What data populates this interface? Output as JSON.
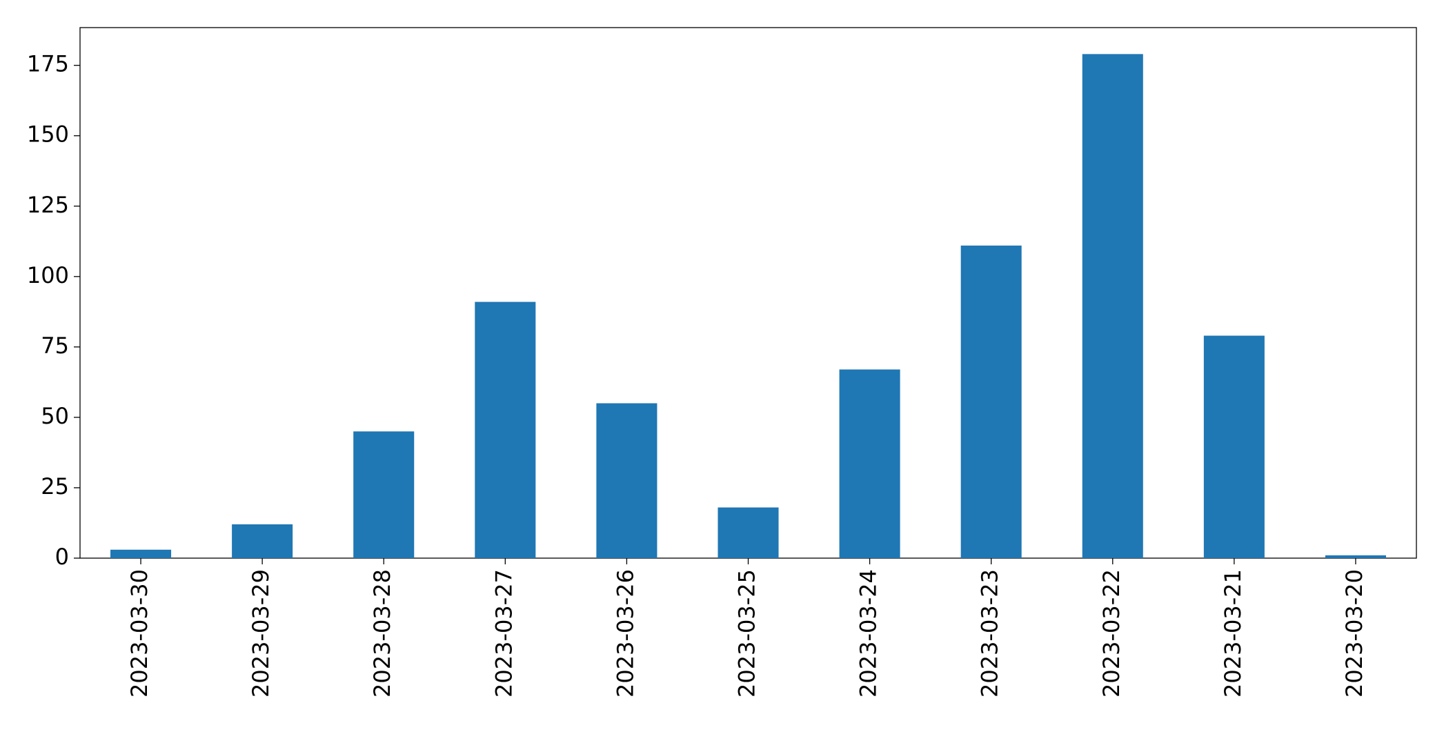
{
  "chart_data": {
    "type": "bar",
    "categories": [
      "2023-03-30",
      "2023-03-29",
      "2023-03-28",
      "2023-03-27",
      "2023-03-26",
      "2023-03-25",
      "2023-03-24",
      "2023-03-23",
      "2023-03-22",
      "2023-03-21",
      "2023-03-20"
    ],
    "values": [
      3,
      12,
      45,
      91,
      55,
      18,
      67,
      111,
      179,
      79,
      1
    ],
    "color": "#1f77b4",
    "ylim": [
      0,
      188.4
    ],
    "yticks": [
      0,
      25,
      50,
      75,
      100,
      125,
      150,
      175
    ],
    "grid": false
  }
}
